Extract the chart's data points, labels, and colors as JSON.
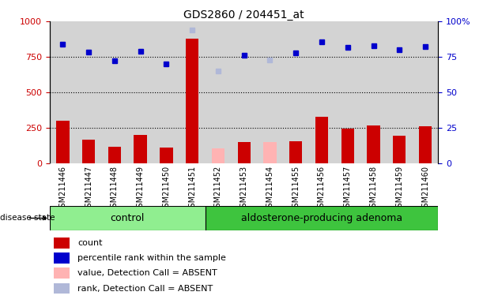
{
  "title": "GDS2860 / 204451_at",
  "samples": [
    "GSM211446",
    "GSM211447",
    "GSM211448",
    "GSM211449",
    "GSM211450",
    "GSM211451",
    "GSM211452",
    "GSM211453",
    "GSM211454",
    "GSM211455",
    "GSM211456",
    "GSM211457",
    "GSM211458",
    "GSM211459",
    "GSM211460"
  ],
  "counts": [
    300,
    170,
    120,
    200,
    115,
    880,
    null,
    150,
    null,
    155,
    330,
    248,
    270,
    195,
    265
  ],
  "counts_absent": [
    null,
    null,
    null,
    null,
    null,
    null,
    110,
    null,
    150,
    null,
    null,
    null,
    null,
    null,
    null
  ],
  "percentile_ranks": [
    840,
    785,
    720,
    790,
    700,
    null,
    null,
    760,
    null,
    775,
    855,
    815,
    825,
    800,
    820
  ],
  "percentile_ranks_absent": [
    null,
    null,
    null,
    null,
    null,
    940,
    650,
    null,
    730,
    null,
    null,
    null,
    null,
    null,
    null
  ],
  "bar_color": "#cc0000",
  "bar_absent_color": "#ffb3b3",
  "dot_color": "#0000cc",
  "dot_absent_color": "#b0b8d8",
  "control_count": 6,
  "control_label": "control",
  "adenoma_label": "aldosterone-producing adenoma",
  "disease_state_label": "disease state",
  "ylim": [
    0,
    1000
  ],
  "yticks_left": [
    0,
    250,
    500,
    750,
    1000
  ],
  "ytick_labels_left": [
    "0",
    "250",
    "500",
    "750",
    "1000"
  ],
  "ytick_labels_right": [
    "0",
    "25",
    "50",
    "75",
    "100%"
  ],
  "bg_color": "#d3d3d3",
  "control_bg": "#90ee90",
  "adenoma_bg": "#3ec43e",
  "legend_items": [
    {
      "label": "count",
      "color": "#cc0000"
    },
    {
      "label": "percentile rank within the sample",
      "color": "#0000cc"
    },
    {
      "label": "value, Detection Call = ABSENT",
      "color": "#ffb3b3"
    },
    {
      "label": "rank, Detection Call = ABSENT",
      "color": "#b0b8d8"
    }
  ],
  "grid_lines": [
    250,
    500,
    750
  ]
}
